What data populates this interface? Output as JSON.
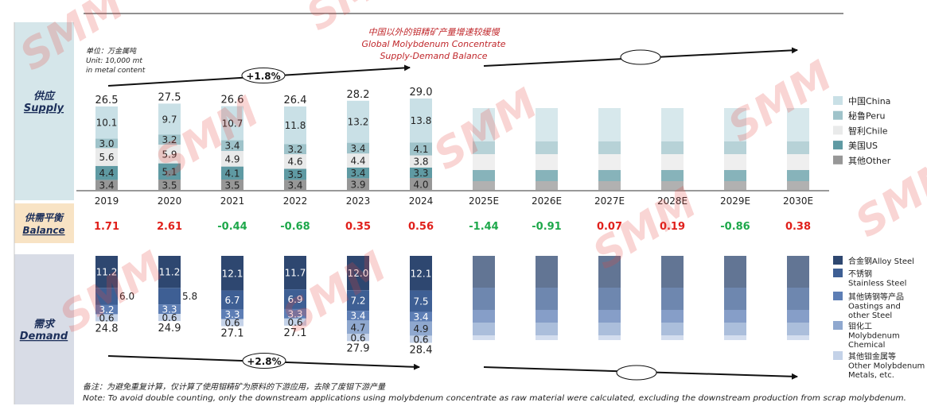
{
  "chart_data": {
    "type": "bar",
    "title_cn": "中国以外的钼精矿产量增速较缓慢",
    "title_en_1": "Global Molybdenum Concentrate",
    "title_en_2": "Supply-Demand Balance",
    "unit_cn": "单位：万金属吨",
    "unit_en_1": "Unit: 10,000 mt",
    "unit_en_2": "in metal content",
    "years": [
      "2019",
      "2020",
      "2021",
      "2022",
      "2023",
      "2024",
      "2025E",
      "2026E",
      "2027E",
      "2028E",
      "2029E",
      "2030E"
    ],
    "supply": {
      "label_cn": "供应",
      "label_en": "Supply",
      "cagr_label": "+1.8%",
      "totals": [
        "26.5",
        "27.5",
        "26.6",
        "26.4",
        "28.2",
        "29.0"
      ],
      "series": [
        {
          "name": "中国China",
          "color": "#c9e0e6",
          "values": [
            "10.1",
            "9.7",
            "10.7",
            "11.8",
            "13.2",
            "13.8"
          ]
        },
        {
          "name": "秘鲁Peru",
          "color": "#9fc3ca",
          "values": [
            "3.0",
            "3.2",
            "3.4",
            "3.2",
            "3.4",
            "4.1"
          ]
        },
        {
          "name": "智利Chile",
          "color": "#e9eaea",
          "values": [
            "5.6",
            "5.9",
            "4.9",
            "4.6",
            "4.4",
            "3.8"
          ]
        },
        {
          "name": "美国US",
          "color": "#5f9aa3",
          "values": [
            "4.4",
            "5.1",
            "4.1",
            "3.5",
            "3.4",
            "3.3"
          ]
        },
        {
          "name": "其他Other",
          "color": "#979797",
          "values": [
            "3.4",
            "3.5",
            "3.5",
            "3.4",
            "3.9",
            "4.0"
          ]
        }
      ]
    },
    "balance": {
      "label_cn": "供需平衡",
      "label_en": "Balance",
      "values": [
        "1.71",
        "2.61",
        "-0.44",
        "-0.68",
        "0.35",
        "0.56",
        "-1.44",
        "-0.91",
        "0.07",
        "0.19",
        "-0.86",
        "0.38"
      ],
      "positive_color": "#e0201b",
      "negative_color": "#1ea84b"
    },
    "demand": {
      "label_cn": "需求",
      "label_en": "Demand",
      "cagr_label": "+2.8%",
      "totals": [
        "24.8",
        "24.9",
        "27.1",
        "27.1",
        "27.9",
        "28.4"
      ],
      "series": [
        {
          "name_cn": "合金钢",
          "name_en": "Alloy Steel",
          "color": "#2e4770",
          "values": [
            "11.2",
            "11.2",
            "12.1",
            "11.7",
            "12.0",
            "12.1"
          ]
        },
        {
          "name_cn": "不锈钢",
          "name_en": "Stainless Steel",
          "color": "#3e5f94",
          "values": [
            "6.0",
            "5.8",
            "6.7",
            "6.9",
            "7.2",
            "7.5"
          ]
        },
        {
          "name_cn": "其他铸钢等产品",
          "name_en": "Oastings and other Steel",
          "color": "#5d7eb5",
          "values": [
            "3.2",
            "3.3",
            "3.3",
            "3.3",
            "3.4",
            "3.4"
          ]
        },
        {
          "name_cn": "钼化工",
          "name_en": "Molybdenum Chemical",
          "color": "#8fa8cf",
          "values": [
            "",
            "",
            "",
            "",
            "4.7",
            "4.9"
          ]
        },
        {
          "name_cn": "其他钼金属等",
          "name_en": "Other Molybdenum Metals, etc.",
          "color": "#c4d2e8",
          "values": [
            "0.6",
            "0.6",
            "0.6",
            "0.6",
            "0.6",
            "0.6"
          ]
        }
      ]
    },
    "note_cn": "备注：为避免重复计算，仅计算了使用钼精矿为原料的下游应用，去除了废钼下游产量",
    "note_en": "Note: To avoid double counting, only the downstream applications using molybdenum concentrate as raw material were calculated, excluding the downstream production from scrap molybdenum.",
    "watermark": "SMM"
  }
}
